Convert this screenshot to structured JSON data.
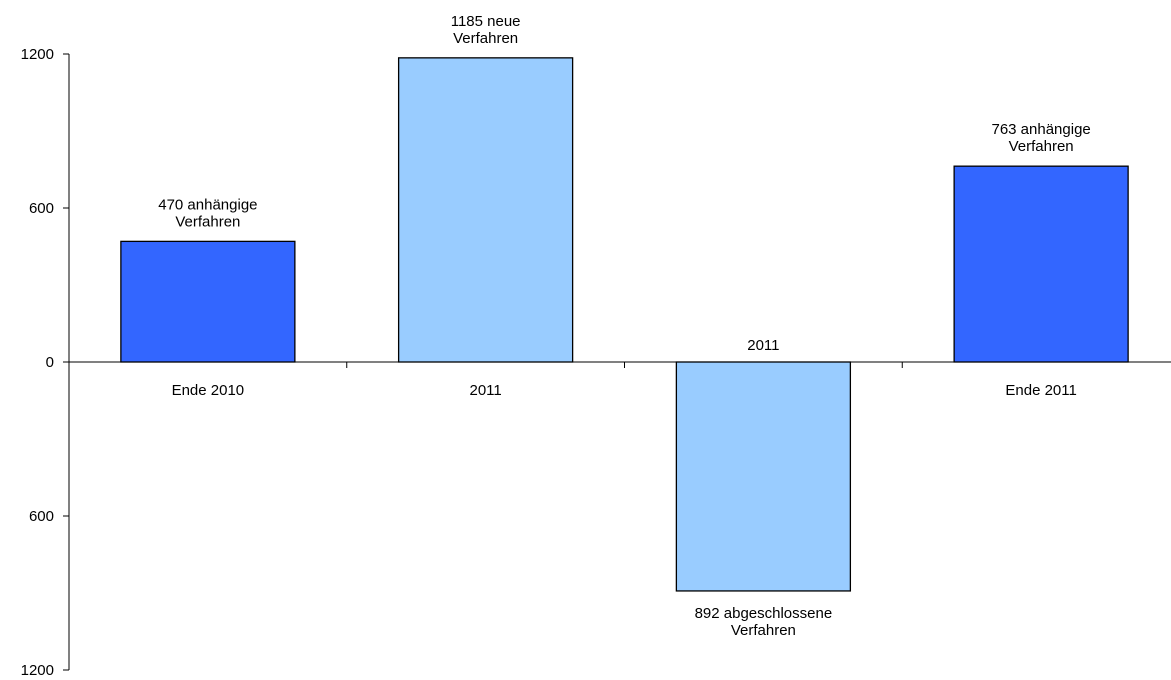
{
  "chart_data": {
    "type": "bar",
    "categories": [
      "Ende 2010",
      "2011",
      "2011",
      "Ende 2011"
    ],
    "values": [
      470,
      1185,
      -892,
      763
    ],
    "data_labels": [
      [
        "470 anhängige",
        "Verfahren"
      ],
      [
        "1185 neue",
        "Verfahren"
      ],
      [
        "892 abgeschlossene",
        "Verfahren"
      ],
      [
        "763 anhängige",
        "Verfahren"
      ]
    ],
    "bar_colors": [
      "#3366FF",
      "#99CCFF",
      "#99CCFF",
      "#3366FF"
    ],
    "y_ticks": [
      {
        "value": 1200,
        "label": "1200"
      },
      {
        "value": 600,
        "label": "600"
      },
      {
        "value": 0,
        "label": "0"
      },
      {
        "value": -600,
        "label": "600"
      },
      {
        "value": -1200,
        "label": "1200"
      }
    ],
    "ylim": [
      -1200,
      1200
    ],
    "title": "",
    "xlabel": "",
    "ylabel": "",
    "grid": false,
    "legend": "none"
  }
}
